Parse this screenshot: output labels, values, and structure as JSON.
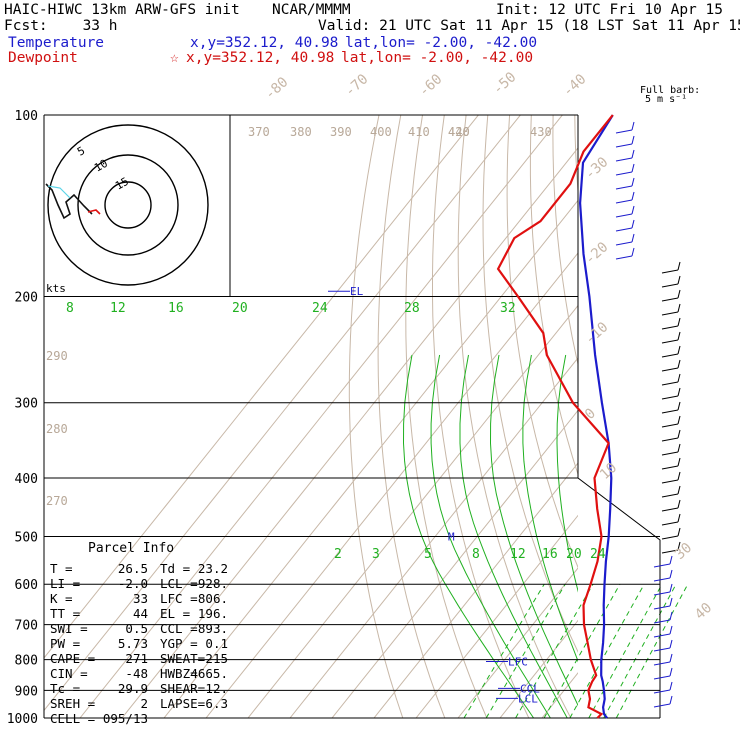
{
  "header": {
    "model": "HAIC-HIWC 13km ARW-GFS init",
    "org": "NCAR/MMMM",
    "init": "Init: 12 UTC Fri 10 Apr 15",
    "fcst": "Fcst:    33 h",
    "valid": "Valid: 21 UTC Sat 11 Apr 15 (18 LST Sat 11 Apr 15)",
    "temperature_label": "Temperature",
    "dewpoint_label": "Dewpoint",
    "temp_xy": "x,y=352.12, 40.98",
    "dew_xy": "x,y=352.12, 40.98",
    "temp_latlon": "lat,lon= -2.00, -42.00",
    "dew_latlon": "lat,lon= -2.00, -42.00",
    "star": "☆",
    "barb_title_1": "Full barb:",
    "barb_title_2": "5 m s⁻¹"
  },
  "colors": {
    "temperature": "#1c1ccc",
    "dewpoint": "#e01010",
    "isotherm": "#c8b8a8",
    "theta": "#c8b8a8",
    "mixing_ratio": "#20b020",
    "moist_adiabat": "#20b020",
    "isobar": "#000000"
  },
  "parcel": {
    "title": "Parcel  Info",
    "rows": [
      {
        "a": "T  =",
        "b": "26.5",
        "c": "Td =",
        "d": "23.2"
      },
      {
        "a": "LI =",
        "b": "-2.0",
        "c": "LCL =",
        "d": "928."
      },
      {
        "a": "K  =",
        "b": "33",
        "c": "LFC =",
        "d": "806."
      },
      {
        "a": "TT =",
        "b": "44",
        "c": "EL  =",
        "d": "196."
      },
      {
        "a": "SWI =",
        "b": "0.5",
        "c": "CCL =",
        "d": "893."
      },
      {
        "a": "PW =",
        "b": "5.73",
        "c": "YGP =",
        "d": "0.1"
      },
      {
        "a": "CAPE =",
        "b": "271",
        "c": "SWEAT=",
        "d": "215"
      },
      {
        "a": "CIN =",
        "b": "-48",
        "c": "HWBZ=",
        "d": "4665."
      },
      {
        "a": "Tc =",
        "b": "29.9",
        "c": "SHEAR=",
        "d": "12."
      },
      {
        "a": "SREH =",
        "b": "2",
        "c": "LAPSE=",
        "d": "6.3"
      },
      {
        "a": "CELL =",
        "b": "095/13",
        "c": "",
        "d": ""
      }
    ]
  },
  "hodograph": {
    "unit": "kts",
    "ring_labels": [
      "5",
      "10",
      "15"
    ]
  },
  "chart_data": {
    "type": "line",
    "title": "",
    "ylabel": "",
    "xlabel": "",
    "y_scale": "log-pressure (hPa)",
    "pressure_levels": [
      100,
      200,
      300,
      400,
      500,
      600,
      700,
      800,
      900,
      1000
    ],
    "isotherm_labels": [
      "-80",
      "-70",
      "-60",
      "-50",
      "-40",
      "-30",
      "-20",
      "-10",
      "0",
      "10",
      "20",
      "30",
      "40"
    ],
    "theta_labels": [
      "370",
      "380",
      "390",
      "400",
      "410",
      "420",
      "430",
      "440",
      "290",
      "280",
      "270"
    ],
    "moist_labels_upper": [
      "8",
      "12",
      "16",
      "20",
      "24",
      "28",
      "32"
    ],
    "mixing_ratio_labels": [
      "2",
      "3",
      "5",
      "8",
      "12",
      "16",
      "20",
      "24"
    ],
    "level_labels": {
      "el": "EL",
      "lfc": "LFC",
      "ccl": "CCL",
      "lcl": "LCL",
      "m": "M"
    },
    "series": [
      {
        "name": "Temperature",
        "p": [
          1000,
          985,
          960,
          930,
          900,
          870,
          850,
          800,
          750,
          700,
          650,
          600,
          550,
          500,
          450,
          400,
          350,
          300,
          250,
          200,
          170,
          140,
          120,
          100
        ],
        "t": [
          25.5,
          24.0,
          22.5,
          21.3,
          19.5,
          17.5,
          16.0,
          13.0,
          10.2,
          7.0,
          3.2,
          -0.6,
          -4.6,
          -8.7,
          -13.6,
          -19.2,
          -26.5,
          -35.8,
          -46.5,
          -59.0,
          -68.5,
          -79.0,
          -86.0,
          -88.0
        ]
      },
      {
        "name": "Dewpoint",
        "p": [
          1000,
          985,
          960,
          930,
          900,
          870,
          850,
          800,
          750,
          700,
          650,
          600,
          550,
          500,
          450,
          400,
          350,
          300,
          250,
          230,
          200,
          180,
          160,
          150,
          130,
          115,
          100
        ],
        "t": [
          23.2,
          23.4,
          19.0,
          17.8,
          15.8,
          15.0,
          14.8,
          10.5,
          6.5,
          2.2,
          -1.6,
          -3.9,
          -6.6,
          -10.4,
          -16.7,
          -23.2,
          -26.5,
          -42.7,
          -58.0,
          -63.0,
          -76.0,
          -86.0,
          -88.0,
          -85.0,
          -85.0,
          -88.0,
          -88.0
        ]
      }
    ],
    "wind_barbs": "right column, 100-1000 hPa, light winds"
  }
}
